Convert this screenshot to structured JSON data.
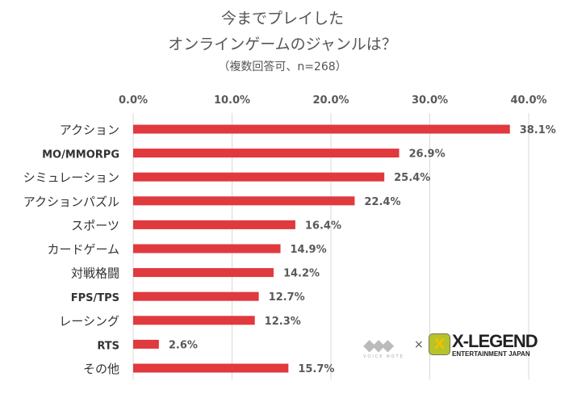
{
  "chart_data": {
    "type": "bar",
    "orientation": "horizontal",
    "title": [
      "今までプレイした",
      "オンラインゲームのジャンルは？"
    ],
    "subtitle": "（複数回答可、n=268）",
    "categories": [
      "アクション",
      "MO/MMORPG",
      "シミュレーション",
      "アクションパズル",
      "スポーツ",
      "カードゲーム",
      "対戦格闘",
      "FPS/TPS",
      "レーシング",
      "RTS",
      "その他"
    ],
    "values": [
      38.1,
      26.9,
      25.4,
      22.4,
      16.4,
      14.9,
      14.2,
      12.7,
      12.3,
      2.6,
      15.7
    ],
    "value_labels": [
      "38.1%",
      "26.9%",
      "25.4%",
      "22.4%",
      "16.4%",
      "14.9%",
      "14.2%",
      "12.7%",
      "12.3%",
      "2.6%",
      "15.7%"
    ],
    "xlim": [
      0,
      40
    ],
    "ticks": [
      "0.0%",
      "10.0%",
      "20.0%",
      "30.0%",
      "40.0%"
    ],
    "tick_values": [
      0,
      10,
      20,
      30,
      40
    ],
    "axis_position": "top",
    "grid": true,
    "bar_color": "#e0393e"
  },
  "logos": {
    "left": "VOICE NOTE",
    "times": "×",
    "right_title": "X-LEGEND",
    "right_sub": "ENTERTAINMENT JAPAN",
    "right_mark": "X"
  }
}
